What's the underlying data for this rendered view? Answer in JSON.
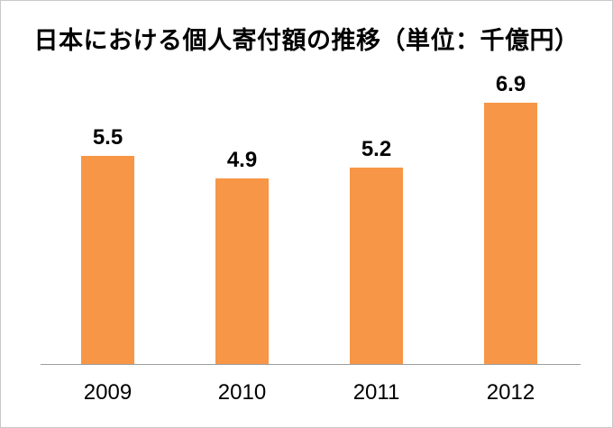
{
  "chart_data": {
    "type": "bar",
    "title": "日本における個人寄付額の推移（単位：千億円）",
    "unit": "千億円",
    "categories": [
      "2009",
      "2010",
      "2011",
      "2012"
    ],
    "values": [
      5.5,
      4.9,
      5.2,
      6.9
    ],
    "value_labels": [
      "5.5",
      "4.9",
      "5.2",
      "6.9"
    ],
    "xlabel": "",
    "ylabel": "",
    "ylim": [
      0,
      8
    ],
    "grid": false,
    "legend": false,
    "data_labels_position": "above-bars",
    "bar_color": "#F79646",
    "axis_line_color": "#9e9e9e",
    "title_color": "#000000",
    "label_color": "#000000",
    "background_color": "#ffffff",
    "frame_border_color": "#c9c9c9"
  }
}
